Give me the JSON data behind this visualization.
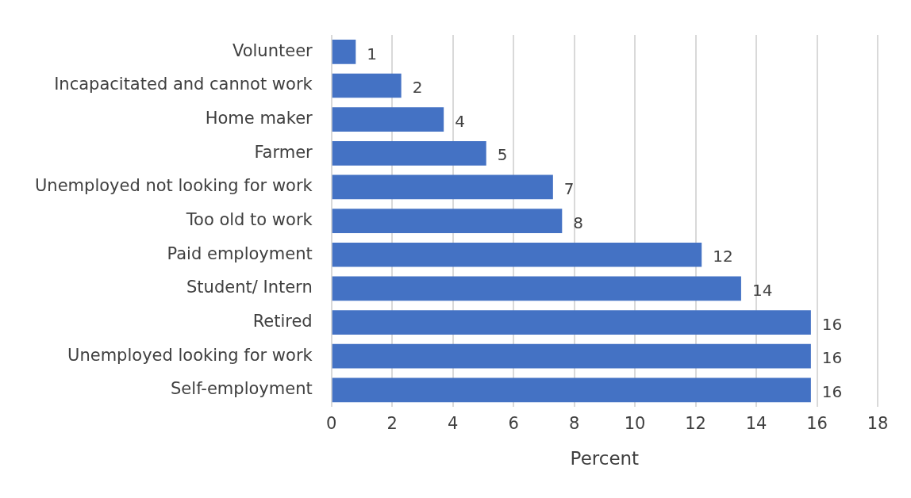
{
  "chart_data": {
    "type": "bar",
    "orientation": "horizontal",
    "xlabel": "Percent",
    "categories": [
      "Volunteer",
      "Incapacitated and cannot work",
      "Home maker",
      "Farmer",
      "Unemployed not looking for work",
      "Too old to work",
      "Paid employment",
      "Student/ Intern",
      "Retired",
      "Unemployed looking for work",
      "Self-employment"
    ],
    "values": [
      0.8,
      2.3,
      3.7,
      5.1,
      7.3,
      7.6,
      12.2,
      13.5,
      15.8,
      15.8,
      15.8
    ],
    "value_labels": [
      "1",
      "2",
      "4",
      "5",
      "7",
      "8",
      "12",
      "14",
      "16",
      "16",
      "16"
    ],
    "color": "#4472c4",
    "xlim": [
      0,
      18
    ],
    "xticks": [
      0,
      2,
      4,
      6,
      8,
      10,
      12,
      14,
      16,
      18
    ],
    "grid": "x",
    "legend": false
  }
}
